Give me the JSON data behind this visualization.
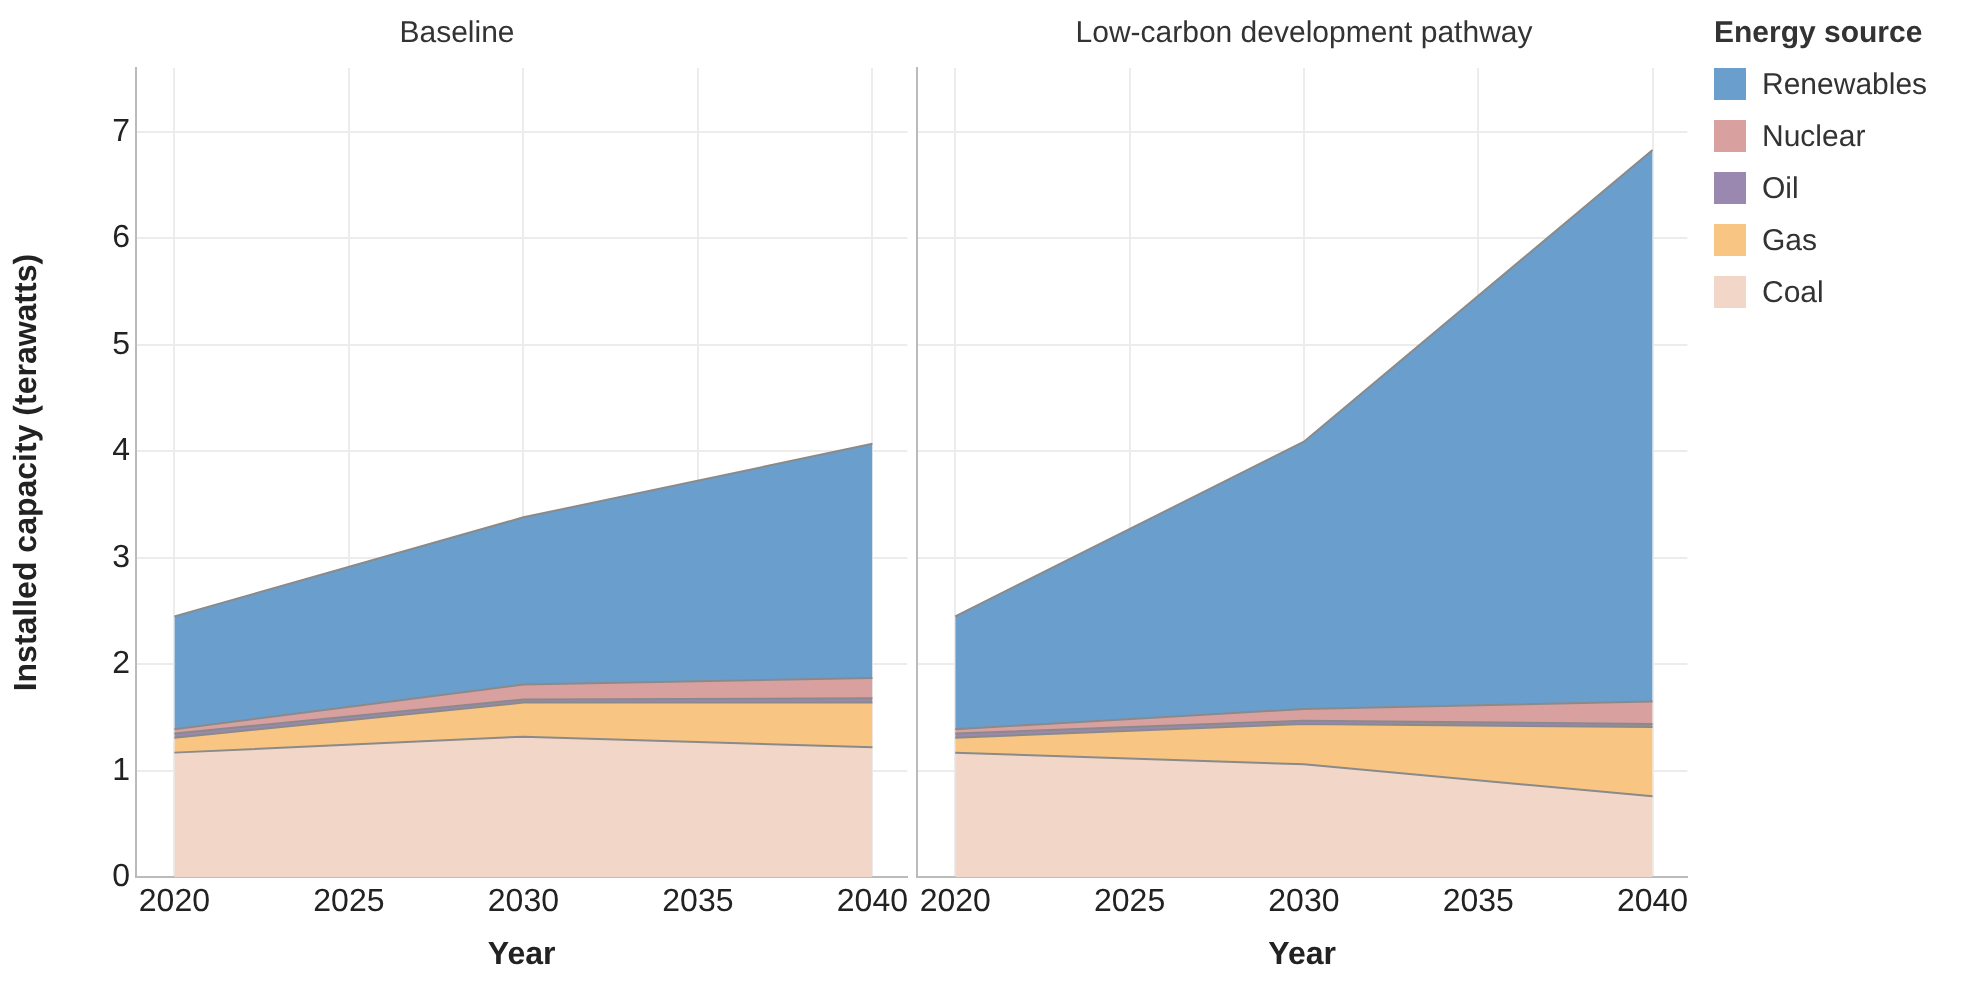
{
  "chart_data": [
    {
      "type": "area",
      "title": "Baseline",
      "xlabel": "Year",
      "ylabel": "Installed capacity (terawatts)",
      "stacked": true,
      "x": [
        2020,
        2030,
        2040
      ],
      "xlim": [
        2018.9,
        2041
      ],
      "xticks": [
        2020,
        2025,
        2030,
        2035,
        2040
      ],
      "ylim": [
        0,
        7.6
      ],
      "yticks": [
        0,
        1,
        2,
        3,
        4,
        5,
        6,
        7
      ],
      "grid": true,
      "legend": "right",
      "series": [
        {
          "name": "Coal",
          "color": "#f2d7c9",
          "values": [
            1.17,
            1.32,
            1.22
          ]
        },
        {
          "name": "Gas",
          "color": "#f8c682",
          "values": [
            0.14,
            0.32,
            0.42
          ]
        },
        {
          "name": "Oil",
          "color": "#9a88b0",
          "values": [
            0.04,
            0.03,
            0.04
          ]
        },
        {
          "name": "Nuclear",
          "color": "#d9a0a0",
          "values": [
            0.04,
            0.14,
            0.19
          ]
        },
        {
          "name": "Renewables",
          "color": "#6a9fcd",
          "values": [
            1.06,
            1.57,
            2.2
          ]
        }
      ]
    },
    {
      "type": "area",
      "title": "Low-carbon development pathway",
      "xlabel": "Year",
      "stacked": true,
      "x": [
        2020,
        2030,
        2040
      ],
      "xlim": [
        2018.9,
        2041
      ],
      "xticks": [
        2020,
        2025,
        2030,
        2035,
        2040
      ],
      "ylim": [
        0,
        7.6
      ],
      "yticks": [
        0,
        1,
        2,
        3,
        4,
        5,
        6,
        7
      ],
      "grid": true,
      "tick_labels": "x",
      "legend": "right",
      "legend_title": "Energy source",
      "series": [
        {
          "name": "Coal",
          "color": "#f2d7c9",
          "values": [
            1.17,
            1.06,
            0.76
          ]
        },
        {
          "name": "Gas",
          "color": "#f8c682",
          "values": [
            0.14,
            0.38,
            0.65
          ]
        },
        {
          "name": "Oil",
          "color": "#9a88b0",
          "values": [
            0.04,
            0.03,
            0.03
          ]
        },
        {
          "name": "Nuclear",
          "color": "#d9a0a0",
          "values": [
            0.04,
            0.11,
            0.21
          ]
        },
        {
          "name": "Renewables",
          "color": "#6a9fcd",
          "values": [
            1.06,
            2.51,
            5.18
          ]
        }
      ]
    }
  ]
}
